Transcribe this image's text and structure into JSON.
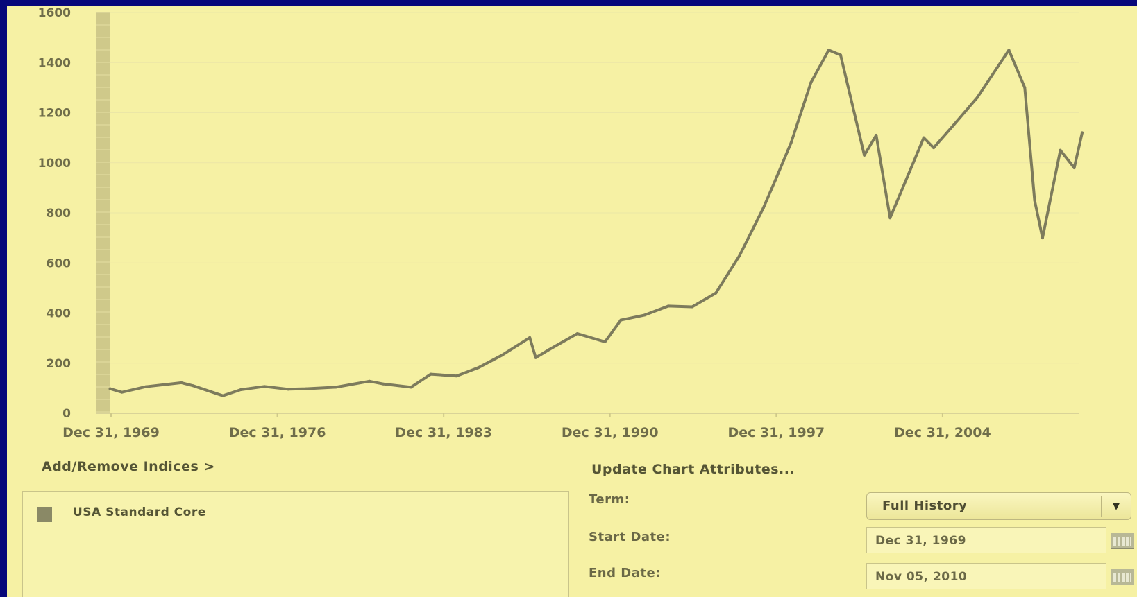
{
  "chart_data": {
    "type": "line",
    "ylim": [
      0,
      1600
    ],
    "yticks": [
      0,
      200,
      400,
      600,
      800,
      1000,
      1200,
      1400,
      1600
    ],
    "xticks": [
      "Dec 31, 1969",
      "Dec 31, 1976",
      "Dec 31, 1983",
      "Dec 31, 1990",
      "Dec 31, 1997",
      "Dec 31, 2004"
    ],
    "xrange": [
      "Dec 31, 1969",
      "Nov 05, 2010"
    ],
    "line_color": "#7d7b5c",
    "series": [
      {
        "name": "USA Standard Core",
        "x": [
          "1969-12",
          "1970-06",
          "1971-06",
          "1972-12",
          "1973-06",
          "1974-09",
          "1975-06",
          "1976-06",
          "1977-06",
          "1978-03",
          "1979-06",
          "1980-11",
          "1981-06",
          "1982-08",
          "1983-06",
          "1984-07",
          "1985-06",
          "1986-06",
          "1987-08",
          "1987-11",
          "1988-06",
          "1989-08",
          "1990-10",
          "1991-06",
          "1992-06",
          "1993-06",
          "1994-06",
          "1995-06",
          "1996-06",
          "1997-06",
          "1997-12",
          "1998-08",
          "1999-06",
          "2000-03",
          "2000-09",
          "2001-09",
          "2002-03",
          "2002-10",
          "2003-06",
          "2004-03",
          "2004-08",
          "2005-06",
          "2006-06",
          "2007-10",
          "2008-06",
          "2008-11",
          "2009-03",
          "2009-12",
          "2010-07",
          "2010-11"
        ],
        "values": [
          98,
          84,
          106,
          122,
          110,
          70,
          94,
          107,
          96,
          98,
          104,
          128,
          117,
          104,
          156,
          149,
          182,
          232,
          302,
          222,
          255,
          318,
          285,
          372,
          392,
          428,
          425,
          480,
          630,
          820,
          930,
          1080,
          1320,
          1450,
          1430,
          1030,
          1110,
          780,
          930,
          1100,
          1060,
          1150,
          1260,
          1450,
          1300,
          850,
          700,
          1050,
          980,
          1120
        ]
      }
    ]
  },
  "controls": {
    "add_remove": "Add/Remove Indices >",
    "update_attrs": "Update Chart Attributes...",
    "legend_item": "USA Standard Core",
    "term_label": "Term:",
    "term_value": "Full History",
    "start_label": "Start Date:",
    "start_value": "Dec 31, 1969",
    "end_label": "End Date:",
    "end_value": "Nov 05, 2010"
  }
}
